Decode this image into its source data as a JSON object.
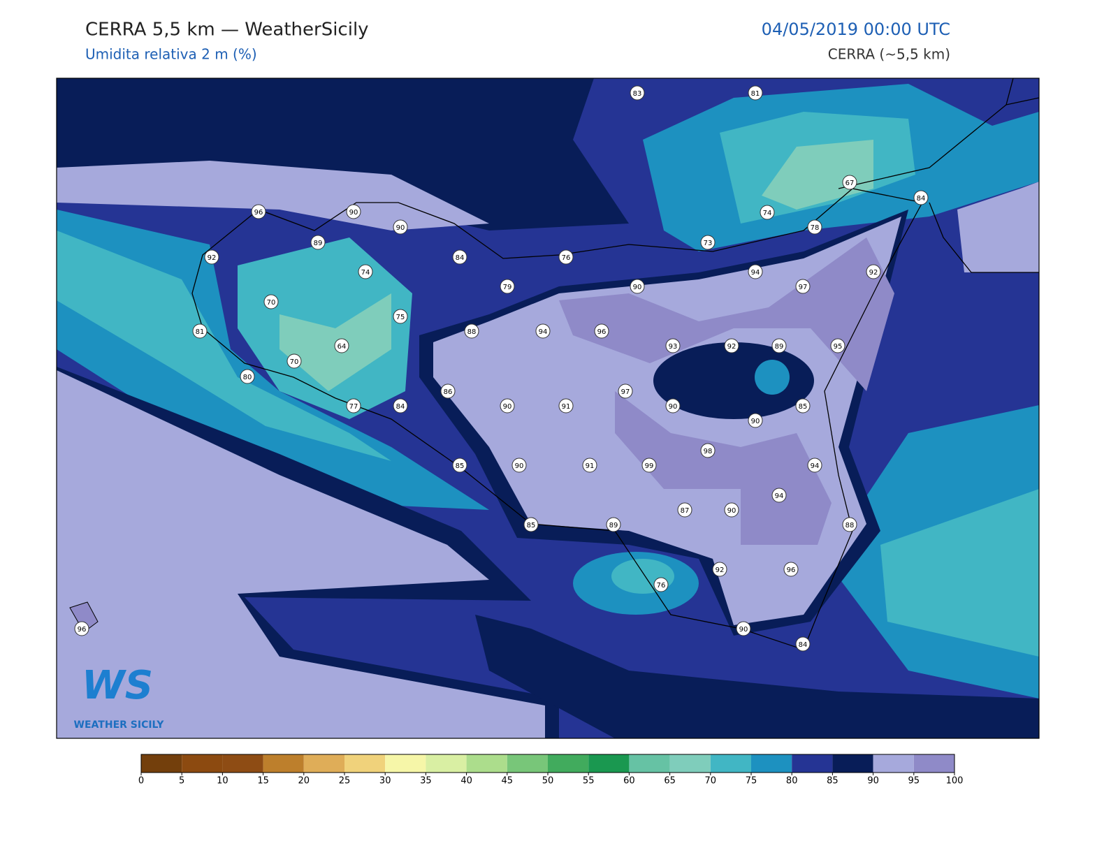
{
  "header": {
    "title": "CERRA 5,5 km — WeatherSicily",
    "subtitle": "Umidita relativa 2 m (%)",
    "datetime": "04/05/2019 00:00 UTC",
    "model": "CERRA (~5,5 km)"
  },
  "stations": [
    83,
    81,
    67,
    84,
    74,
    78,
    73,
    96,
    90,
    90,
    89,
    92,
    84,
    76,
    74,
    94,
    92,
    79,
    90,
    97,
    70,
    75,
    88,
    94,
    96,
    81,
    64,
    93,
    92,
    89,
    95,
    70,
    80,
    86,
    97,
    77,
    84,
    90,
    91,
    90,
    85,
    90,
    98,
    85,
    90,
    91,
    99,
    94,
    94,
    87,
    90,
    85,
    89,
    88,
    92,
    96,
    76,
    96,
    90,
    84
  ],
  "colorbar": {
    "ticks": [
      0,
      5,
      10,
      15,
      20,
      25,
      30,
      35,
      40,
      45,
      50,
      55,
      60,
      65,
      70,
      75,
      80,
      85,
      90,
      95,
      100
    ],
    "colors": [
      "#733f0c",
      "#8c4a10",
      "#8e4c14",
      "#bd7f2c",
      "#dfad58",
      "#f0d27b",
      "#f6f6a8",
      "#d9efa3",
      "#acdd8c",
      "#78c679",
      "#41ab5d",
      "#1a9850",
      "#66c2a4",
      "#7fcdbb",
      "#41b6c4",
      "#1d91c0",
      "#253494",
      "#081d58",
      "#a6a9dc",
      "#8f8ac8"
    ]
  },
  "logo": {
    "mark": "WS",
    "name": "WEATHER SICILY"
  }
}
